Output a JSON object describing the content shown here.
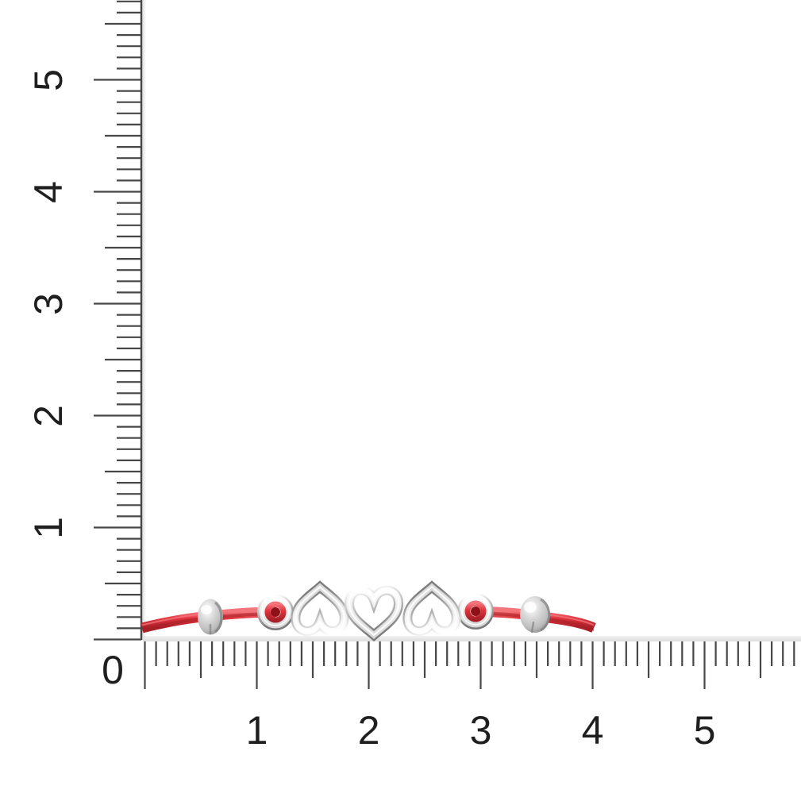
{
  "scene": {
    "description": "Red cord bracelet with three open silver heart charms, two cord rings and two slider beads, photographed against a corner measuring ruler"
  },
  "rulers": {
    "origin_label": "0",
    "horizontal": {
      "labels": [
        "1",
        "2",
        "3",
        "4",
        "5"
      ],
      "subdivisions_per_unit": 10,
      "extra_subdivisions": 8
    },
    "vertical": {
      "labels": [
        "1",
        "2",
        "3",
        "4",
        "5"
      ],
      "subdivisions_per_unit": 10,
      "extra_subdivisions": 7
    }
  },
  "bracelet": {
    "charms": [
      "inverted-open-heart",
      "open-heart",
      "inverted-open-heart"
    ],
    "findings": [
      "slider-bead",
      "cord-ring",
      "cord-ring",
      "slider-bead"
    ],
    "cord_color_name": "red",
    "metal_color_name": "silver"
  },
  "colors": {
    "background": "#ffffff",
    "tick": "#474747",
    "label": "#1f1f1f",
    "shadow": "#d8d8d8",
    "cord_light": "#f4757c",
    "cord_main": "#e23640",
    "cord_dark": "#a81f27",
    "cord_core": "#8e1118",
    "silver_light": "#ffffff",
    "silver_face": "#d7d7d7",
    "silver_mid": "#bdbdbd",
    "silver_edge": "#7a7a7a"
  }
}
